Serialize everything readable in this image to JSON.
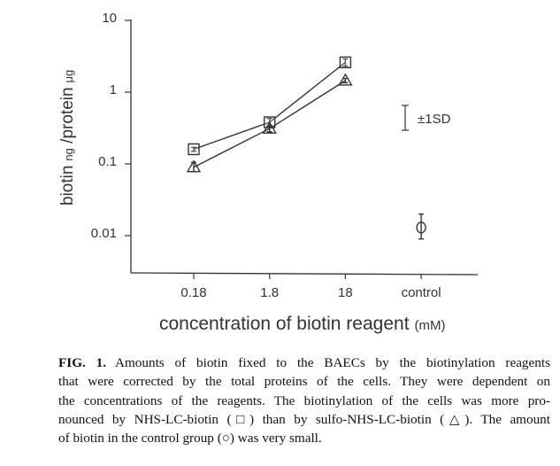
{
  "chart_data": {
    "type": "line",
    "y_scale": "log",
    "ylim": [
      0.003,
      10
    ],
    "yticks": [
      "10",
      "1",
      "0.1",
      "0.01"
    ],
    "ytick_values": [
      10,
      1,
      0.1,
      0.01
    ],
    "categories": [
      "0.18",
      "1.8",
      "18",
      "control"
    ],
    "ylabel": {
      "main": "biotin",
      "unit1": "ng",
      "sep": " /protein",
      "unit2": "μg"
    },
    "xlabel": {
      "main": "concentration of biotin reagent",
      "unit": "(mM)"
    },
    "series": [
      {
        "name": "NHS-LC-biotin",
        "marker": "square",
        "values": [
          0.16,
          0.38,
          2.6,
          null
        ],
        "err_low": [
          0.15,
          0.33,
          2.3,
          null
        ],
        "err_high": [
          0.17,
          0.43,
          2.9,
          null
        ]
      },
      {
        "name": "sulfo-NHS-LC-biotin",
        "marker": "triangle",
        "values": [
          0.09,
          0.31,
          1.45,
          null
        ],
        "err_low": [
          0.078,
          0.28,
          1.35,
          null
        ],
        "err_high": [
          0.105,
          0.34,
          1.55,
          null
        ]
      },
      {
        "name": "control",
        "marker": "circle",
        "values": [
          null,
          null,
          null,
          0.013
        ],
        "err_low": [
          null,
          null,
          null,
          0.009
        ],
        "err_high": [
          null,
          null,
          null,
          0.02
        ]
      }
    ],
    "annotation": "±1SD",
    "grid": false
  },
  "caption": {
    "label": "FIG. 1.",
    "lines": [
      "Amounts of biotin fixed to the BAECs by the biotinylation reagents",
      "that were corrected by the total proteins of the cells. They were dependent on",
      "the concentrations of the reagents. The biotinylation of the cells was more pro-",
      "nounced by NHS-LC-biotin (□) than by sulfo-NHS-LC-biotin (△). The amount",
      "of biotin in the control group (○) was very small."
    ]
  }
}
